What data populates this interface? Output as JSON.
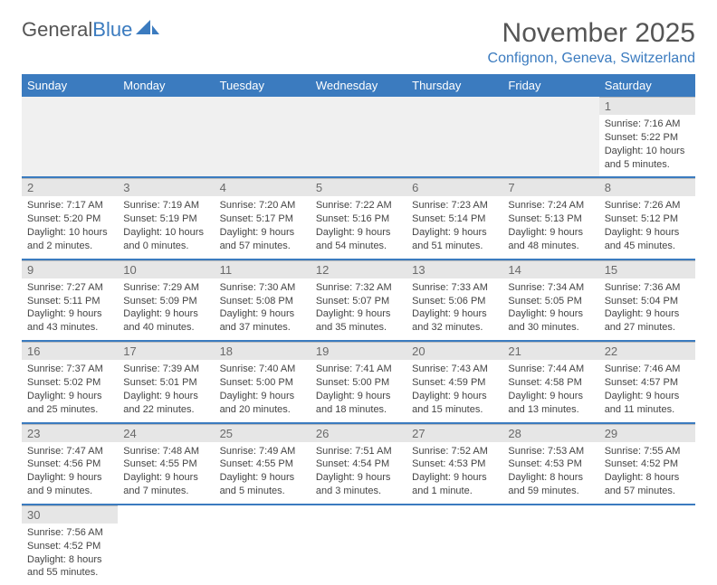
{
  "header": {
    "logo_part1": "General",
    "logo_part2": "Blue",
    "month_title": "November 2025",
    "location": "Confignon, Geneva, Switzerland"
  },
  "colors": {
    "header_blue": "#3b7bbf",
    "day_bg": "#e6e6e6",
    "text": "#444444",
    "title_text": "#555555"
  },
  "day_headers": [
    "Sunday",
    "Monday",
    "Tuesday",
    "Wednesday",
    "Thursday",
    "Friday",
    "Saturday"
  ],
  "weeks": [
    [
      null,
      null,
      null,
      null,
      null,
      null,
      {
        "num": "1",
        "sunrise": "Sunrise: 7:16 AM",
        "sunset": "Sunset: 5:22 PM",
        "daylight": "Daylight: 10 hours and 5 minutes."
      }
    ],
    [
      {
        "num": "2",
        "sunrise": "Sunrise: 7:17 AM",
        "sunset": "Sunset: 5:20 PM",
        "daylight": "Daylight: 10 hours and 2 minutes."
      },
      {
        "num": "3",
        "sunrise": "Sunrise: 7:19 AM",
        "sunset": "Sunset: 5:19 PM",
        "daylight": "Daylight: 10 hours and 0 minutes."
      },
      {
        "num": "4",
        "sunrise": "Sunrise: 7:20 AM",
        "sunset": "Sunset: 5:17 PM",
        "daylight": "Daylight: 9 hours and 57 minutes."
      },
      {
        "num": "5",
        "sunrise": "Sunrise: 7:22 AM",
        "sunset": "Sunset: 5:16 PM",
        "daylight": "Daylight: 9 hours and 54 minutes."
      },
      {
        "num": "6",
        "sunrise": "Sunrise: 7:23 AM",
        "sunset": "Sunset: 5:14 PM",
        "daylight": "Daylight: 9 hours and 51 minutes."
      },
      {
        "num": "7",
        "sunrise": "Sunrise: 7:24 AM",
        "sunset": "Sunset: 5:13 PM",
        "daylight": "Daylight: 9 hours and 48 minutes."
      },
      {
        "num": "8",
        "sunrise": "Sunrise: 7:26 AM",
        "sunset": "Sunset: 5:12 PM",
        "daylight": "Daylight: 9 hours and 45 minutes."
      }
    ],
    [
      {
        "num": "9",
        "sunrise": "Sunrise: 7:27 AM",
        "sunset": "Sunset: 5:11 PM",
        "daylight": "Daylight: 9 hours and 43 minutes."
      },
      {
        "num": "10",
        "sunrise": "Sunrise: 7:29 AM",
        "sunset": "Sunset: 5:09 PM",
        "daylight": "Daylight: 9 hours and 40 minutes."
      },
      {
        "num": "11",
        "sunrise": "Sunrise: 7:30 AM",
        "sunset": "Sunset: 5:08 PM",
        "daylight": "Daylight: 9 hours and 37 minutes."
      },
      {
        "num": "12",
        "sunrise": "Sunrise: 7:32 AM",
        "sunset": "Sunset: 5:07 PM",
        "daylight": "Daylight: 9 hours and 35 minutes."
      },
      {
        "num": "13",
        "sunrise": "Sunrise: 7:33 AM",
        "sunset": "Sunset: 5:06 PM",
        "daylight": "Daylight: 9 hours and 32 minutes."
      },
      {
        "num": "14",
        "sunrise": "Sunrise: 7:34 AM",
        "sunset": "Sunset: 5:05 PM",
        "daylight": "Daylight: 9 hours and 30 minutes."
      },
      {
        "num": "15",
        "sunrise": "Sunrise: 7:36 AM",
        "sunset": "Sunset: 5:04 PM",
        "daylight": "Daylight: 9 hours and 27 minutes."
      }
    ],
    [
      {
        "num": "16",
        "sunrise": "Sunrise: 7:37 AM",
        "sunset": "Sunset: 5:02 PM",
        "daylight": "Daylight: 9 hours and 25 minutes."
      },
      {
        "num": "17",
        "sunrise": "Sunrise: 7:39 AM",
        "sunset": "Sunset: 5:01 PM",
        "daylight": "Daylight: 9 hours and 22 minutes."
      },
      {
        "num": "18",
        "sunrise": "Sunrise: 7:40 AM",
        "sunset": "Sunset: 5:00 PM",
        "daylight": "Daylight: 9 hours and 20 minutes."
      },
      {
        "num": "19",
        "sunrise": "Sunrise: 7:41 AM",
        "sunset": "Sunset: 5:00 PM",
        "daylight": "Daylight: 9 hours and 18 minutes."
      },
      {
        "num": "20",
        "sunrise": "Sunrise: 7:43 AM",
        "sunset": "Sunset: 4:59 PM",
        "daylight": "Daylight: 9 hours and 15 minutes."
      },
      {
        "num": "21",
        "sunrise": "Sunrise: 7:44 AM",
        "sunset": "Sunset: 4:58 PM",
        "daylight": "Daylight: 9 hours and 13 minutes."
      },
      {
        "num": "22",
        "sunrise": "Sunrise: 7:46 AM",
        "sunset": "Sunset: 4:57 PM",
        "daylight": "Daylight: 9 hours and 11 minutes."
      }
    ],
    [
      {
        "num": "23",
        "sunrise": "Sunrise: 7:47 AM",
        "sunset": "Sunset: 4:56 PM",
        "daylight": "Daylight: 9 hours and 9 minutes."
      },
      {
        "num": "24",
        "sunrise": "Sunrise: 7:48 AM",
        "sunset": "Sunset: 4:55 PM",
        "daylight": "Daylight: 9 hours and 7 minutes."
      },
      {
        "num": "25",
        "sunrise": "Sunrise: 7:49 AM",
        "sunset": "Sunset: 4:55 PM",
        "daylight": "Daylight: 9 hours and 5 minutes."
      },
      {
        "num": "26",
        "sunrise": "Sunrise: 7:51 AM",
        "sunset": "Sunset: 4:54 PM",
        "daylight": "Daylight: 9 hours and 3 minutes."
      },
      {
        "num": "27",
        "sunrise": "Sunrise: 7:52 AM",
        "sunset": "Sunset: 4:53 PM",
        "daylight": "Daylight: 9 hours and 1 minute."
      },
      {
        "num": "28",
        "sunrise": "Sunrise: 7:53 AM",
        "sunset": "Sunset: 4:53 PM",
        "daylight": "Daylight: 8 hours and 59 minutes."
      },
      {
        "num": "29",
        "sunrise": "Sunrise: 7:55 AM",
        "sunset": "Sunset: 4:52 PM",
        "daylight": "Daylight: 8 hours and 57 minutes."
      }
    ],
    [
      {
        "num": "30",
        "sunrise": "Sunrise: 7:56 AM",
        "sunset": "Sunset: 4:52 PM",
        "daylight": "Daylight: 8 hours and 55 minutes."
      },
      null,
      null,
      null,
      null,
      null,
      null
    ]
  ]
}
